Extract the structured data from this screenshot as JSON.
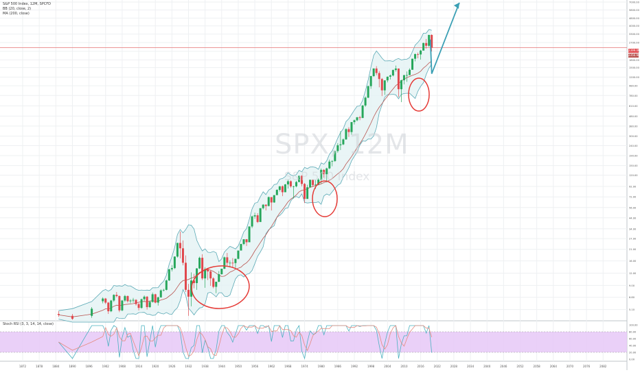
{
  "header": {
    "symbol_line": "S&P 500 Index, 12M, SPCFD",
    "bb_line": "BB (20, close, 2)",
    "ma_line": "MA (200, close)"
  },
  "watermark": {
    "ticker": "SPX, 12M",
    "name": "S&P 500 Index"
  },
  "price_tags": {
    "last": "2399.00",
    "ma": "2356.96"
  },
  "stoch_label": "Stoch RSI (3, 3, 14, 14, close)",
  "colors": {
    "up": "#26a65b",
    "down": "#e0474c",
    "band": "#5aa9b5",
    "band_fill": "#e4f3f4",
    "ma": "#b85450",
    "circle": "#e53935",
    "arrow": "#3a9fb4",
    "stoch_k": "#4ab1c0",
    "stoch_d": "#e58a7f",
    "stoch_bg": "#e6c8f7"
  },
  "chart_data": {
    "type": "candlestick",
    "y_scale": "log",
    "y_ticks": [
      "7000.00",
      "5800.00",
      "4800.00",
      "4000.00",
      "3300.00",
      "2700.00",
      "2200.00",
      "1800.00",
      "1500.00",
      "1200.00",
      "980.00",
      "780.00",
      "610.00",
      "480.00",
      "380.00",
      "300.00",
      "240.00",
      "190.00",
      "150.00",
      "120.00",
      "92.00",
      "72.00",
      "56.00",
      "44.00",
      "34.00",
      "27.00",
      "21.00",
      "16.00",
      "12.00",
      "9.00",
      "6.80",
      "5.10"
    ],
    "x_ticks": [
      "1872",
      "1878",
      "1884",
      "1890",
      "1896",
      "1902",
      "1908",
      "1914",
      "1920",
      "1926",
      "1932",
      "1938",
      "1944",
      "1950",
      "1956",
      "1962",
      "1968",
      "1974",
      "1980",
      "1986",
      "1992",
      "1998",
      "2004",
      "2010",
      "2016",
      "2022",
      "2028",
      "2034",
      "2040",
      "2046",
      "2052",
      "2058",
      "2064",
      "2070",
      "2076",
      "2082"
    ],
    "candles": [
      {
        "x": 1885,
        "o": 4.6,
        "h": 4.9,
        "l": 4.3,
        "c": 4.5
      },
      {
        "x": 1890,
        "o": 4.4,
        "h": 4.6,
        "l": 4.0,
        "c": 4.1
      },
      {
        "x": 1897,
        "o": 4.4,
        "h": 5.4,
        "l": 4.2,
        "c": 5.2
      },
      {
        "x": 1901,
        "o": 6.2,
        "h": 6.8,
        "l": 5.9,
        "c": 6.6
      },
      {
        "x": 1902,
        "o": 6.6,
        "h": 6.7,
        "l": 5.8,
        "c": 6.0
      },
      {
        "x": 1903,
        "o": 6.0,
        "h": 6.1,
        "l": 4.6,
        "c": 4.9
      },
      {
        "x": 1904,
        "o": 4.9,
        "h": 6.4,
        "l": 4.8,
        "c": 6.3
      },
      {
        "x": 1905,
        "o": 6.3,
        "h": 7.3,
        "l": 6.1,
        "c": 7.2
      },
      {
        "x": 1906,
        "o": 7.2,
        "h": 7.7,
        "l": 6.8,
        "c": 7.0
      },
      {
        "x": 1907,
        "o": 7.0,
        "h": 7.1,
        "l": 4.8,
        "c": 5.0
      },
      {
        "x": 1908,
        "o": 5.0,
        "h": 6.4,
        "l": 4.9,
        "c": 6.3
      },
      {
        "x": 1909,
        "o": 6.3,
        "h": 7.2,
        "l": 6.1,
        "c": 7.0
      },
      {
        "x": 1910,
        "o": 7.0,
        "h": 7.1,
        "l": 6.0,
        "c": 6.2
      },
      {
        "x": 1911,
        "o": 6.2,
        "h": 6.5,
        "l": 5.9,
        "c": 6.3
      },
      {
        "x": 1912,
        "o": 6.3,
        "h": 6.7,
        "l": 6.0,
        "c": 6.4
      },
      {
        "x": 1913,
        "o": 6.4,
        "h": 6.5,
        "l": 5.6,
        "c": 5.8
      },
      {
        "x": 1914,
        "o": 5.8,
        "h": 6.0,
        "l": 5.0,
        "c": 5.3
      },
      {
        "x": 1915,
        "o": 5.3,
        "h": 6.6,
        "l": 5.2,
        "c": 6.5
      },
      {
        "x": 1916,
        "o": 6.5,
        "h": 7.1,
        "l": 6.2,
        "c": 6.9
      },
      {
        "x": 1917,
        "o": 6.9,
        "h": 7.0,
        "l": 5.1,
        "c": 5.4
      },
      {
        "x": 1918,
        "o": 5.4,
        "h": 6.3,
        "l": 5.3,
        "c": 6.1
      },
      {
        "x": 1919,
        "o": 6.1,
        "h": 7.6,
        "l": 6.0,
        "c": 7.3
      },
      {
        "x": 1920,
        "o": 7.3,
        "h": 7.4,
        "l": 5.9,
        "c": 6.0
      },
      {
        "x": 1921,
        "o": 6.0,
        "h": 6.9,
        "l": 5.6,
        "c": 6.8
      },
      {
        "x": 1922,
        "o": 6.8,
        "h": 8.2,
        "l": 6.7,
        "c": 8.0
      },
      {
        "x": 1923,
        "o": 8.0,
        "h": 8.3,
        "l": 7.8,
        "c": 8.1
      },
      {
        "x": 1924,
        "o": 8.1,
        "h": 10.3,
        "l": 8.0,
        "c": 10.1
      },
      {
        "x": 1925,
        "o": 10.1,
        "h": 13.3,
        "l": 10.0,
        "c": 13.1
      },
      {
        "x": 1926,
        "o": 13.1,
        "h": 14.5,
        "l": 12.5,
        "c": 13.5
      },
      {
        "x": 1927,
        "o": 13.5,
        "h": 17.8,
        "l": 13.2,
        "c": 17.7
      },
      {
        "x": 1928,
        "o": 17.7,
        "h": 24.4,
        "l": 17.3,
        "c": 24.4
      },
      {
        "x": 1929,
        "o": 24.4,
        "h": 31.9,
        "l": 17.0,
        "c": 21.5
      },
      {
        "x": 1930,
        "o": 21.5,
        "h": 25.9,
        "l": 14.4,
        "c": 15.3
      },
      {
        "x": 1931,
        "o": 15.3,
        "h": 18.2,
        "l": 7.7,
        "c": 8.1
      },
      {
        "x": 1932,
        "o": 8.1,
        "h": 9.3,
        "l": 4.4,
        "c": 6.9
      },
      {
        "x": 1933,
        "o": 6.9,
        "h": 12.2,
        "l": 5.5,
        "c": 10.1
      },
      {
        "x": 1934,
        "o": 10.1,
        "h": 11.8,
        "l": 8.4,
        "c": 9.5
      },
      {
        "x": 1935,
        "o": 9.5,
        "h": 13.5,
        "l": 8.1,
        "c": 13.4
      },
      {
        "x": 1936,
        "o": 13.4,
        "h": 17.7,
        "l": 13.2,
        "c": 17.2
      },
      {
        "x": 1937,
        "o": 17.2,
        "h": 18.7,
        "l": 10.2,
        "c": 10.6
      },
      {
        "x": 1938,
        "o": 10.6,
        "h": 13.8,
        "l": 8.5,
        "c": 13.2
      },
      {
        "x": 1939,
        "o": 13.2,
        "h": 13.2,
        "l": 10.2,
        "c": 12.5
      },
      {
        "x": 1940,
        "o": 12.5,
        "h": 12.8,
        "l": 8.9,
        "c": 10.6
      },
      {
        "x": 1941,
        "o": 10.6,
        "h": 10.9,
        "l": 8.4,
        "c": 8.7
      },
      {
        "x": 1942,
        "o": 8.7,
        "h": 9.8,
        "l": 7.5,
        "c": 9.8
      },
      {
        "x": 1943,
        "o": 9.8,
        "h": 12.6,
        "l": 9.7,
        "c": 11.7
      },
      {
        "x": 1944,
        "o": 11.7,
        "h": 13.3,
        "l": 11.6,
        "c": 13.3
      },
      {
        "x": 1945,
        "o": 13.3,
        "h": 17.7,
        "l": 13.2,
        "c": 17.4
      },
      {
        "x": 1946,
        "o": 17.4,
        "h": 19.3,
        "l": 14.1,
        "c": 15.3
      },
      {
        "x": 1947,
        "o": 15.3,
        "h": 16.2,
        "l": 13.7,
        "c": 15.3
      },
      {
        "x": 1948,
        "o": 15.3,
        "h": 17.1,
        "l": 13.8,
        "c": 15.2
      },
      {
        "x": 1949,
        "o": 15.2,
        "h": 16.8,
        "l": 13.6,
        "c": 16.8
      },
      {
        "x": 1950,
        "o": 16.8,
        "h": 20.4,
        "l": 16.6,
        "c": 20.4
      },
      {
        "x": 1951,
        "o": 20.4,
        "h": 23.9,
        "l": 20.7,
        "c": 23.8
      },
      {
        "x": 1952,
        "o": 23.8,
        "h": 26.6,
        "l": 23.1,
        "c": 26.6
      },
      {
        "x": 1953,
        "o": 26.6,
        "h": 26.7,
        "l": 22.7,
        "c": 24.8
      },
      {
        "x": 1954,
        "o": 24.8,
        "h": 35.9,
        "l": 24.8,
        "c": 35.9
      },
      {
        "x": 1955,
        "o": 35.9,
        "h": 46.4,
        "l": 34.6,
        "c": 45.5
      },
      {
        "x": 1956,
        "o": 45.5,
        "h": 49.7,
        "l": 43.1,
        "c": 46.7
      },
      {
        "x": 1957,
        "o": 46.7,
        "h": 49.1,
        "l": 38.9,
        "c": 39.9
      },
      {
        "x": 1958,
        "o": 39.9,
        "h": 55.2,
        "l": 40.3,
        "c": 55.2
      },
      {
        "x": 1959,
        "o": 55.2,
        "h": 60.7,
        "l": 53.6,
        "c": 59.9
      },
      {
        "x": 1960,
        "o": 59.9,
        "h": 60.4,
        "l": 52.3,
        "c": 58.1
      },
      {
        "x": 1961,
        "o": 58.1,
        "h": 72.6,
        "l": 57.6,
        "c": 71.6
      },
      {
        "x": 1962,
        "o": 71.6,
        "h": 71.1,
        "l": 52.3,
        "c": 63.1
      },
      {
        "x": 1963,
        "o": 63.1,
        "h": 75.0,
        "l": 62.7,
        "c": 75.0
      },
      {
        "x": 1964,
        "o": 75.0,
        "h": 86.3,
        "l": 75.4,
        "c": 84.8
      },
      {
        "x": 1965,
        "o": 84.8,
        "h": 92.6,
        "l": 81.6,
        "c": 92.4
      },
      {
        "x": 1966,
        "o": 92.4,
        "h": 94.1,
        "l": 73.2,
        "c": 80.3
      },
      {
        "x": 1967,
        "o": 80.3,
        "h": 97.6,
        "l": 80.4,
        "c": 96.5
      },
      {
        "x": 1968,
        "o": 96.5,
        "h": 108.4,
        "l": 87.7,
        "c": 103.9
      },
      {
        "x": 1969,
        "o": 103.9,
        "h": 106.2,
        "l": 89.2,
        "c": 92.1
      },
      {
        "x": 1970,
        "o": 92.1,
        "h": 93.5,
        "l": 69.3,
        "c": 92.2
      },
      {
        "x": 1971,
        "o": 92.2,
        "h": 104.8,
        "l": 90.2,
        "c": 102.1
      },
      {
        "x": 1972,
        "o": 102.1,
        "h": 119.1,
        "l": 101.7,
        "c": 118.1
      },
      {
        "x": 1973,
        "o": 118.1,
        "h": 120.2,
        "l": 92.2,
        "c": 97.6
      },
      {
        "x": 1974,
        "o": 97.6,
        "h": 99.8,
        "l": 62.3,
        "c": 68.6
      },
      {
        "x": 1975,
        "o": 68.6,
        "h": 95.6,
        "l": 70.0,
        "c": 90.2
      },
      {
        "x": 1976,
        "o": 90.2,
        "h": 107.8,
        "l": 90.9,
        "c": 107.5
      },
      {
        "x": 1977,
        "o": 107.5,
        "h": 107.0,
        "l": 90.7,
        "c": 95.1
      },
      {
        "x": 1978,
        "o": 95.1,
        "h": 106.9,
        "l": 86.9,
        "c": 96.1
      },
      {
        "x": 1979,
        "o": 96.1,
        "h": 111.3,
        "l": 96.1,
        "c": 107.9
      },
      {
        "x": 1980,
        "o": 107.9,
        "h": 140.5,
        "l": 98.2,
        "c": 135.8
      },
      {
        "x": 1981,
        "o": 135.8,
        "h": 138.1,
        "l": 112.8,
        "c": 122.6
      },
      {
        "x": 1982,
        "o": 122.6,
        "h": 143.0,
        "l": 101.4,
        "c": 140.6
      },
      {
        "x": 1983,
        "o": 140.6,
        "h": 172.7,
        "l": 138.3,
        "c": 164.9
      },
      {
        "x": 1984,
        "o": 164.9,
        "h": 170.4,
        "l": 147.8,
        "c": 167.2
      },
      {
        "x": 1985,
        "o": 167.2,
        "h": 212.0,
        "l": 163.7,
        "c": 211.3
      },
      {
        "x": 1986,
        "o": 211.3,
        "h": 254.0,
        "l": 203.5,
        "c": 242.2
      },
      {
        "x": 1987,
        "o": 242.2,
        "h": 336.8,
        "l": 216.5,
        "c": 247.1
      },
      {
        "x": 1988,
        "o": 247.1,
        "h": 283.7,
        "l": 242.6,
        "c": 277.7
      },
      {
        "x": 1989,
        "o": 277.7,
        "h": 359.8,
        "l": 275.3,
        "c": 353.4
      },
      {
        "x": 1990,
        "o": 353.4,
        "h": 369.8,
        "l": 294.5,
        "c": 330.2
      },
      {
        "x": 1991,
        "o": 330.2,
        "h": 418.3,
        "l": 309.4,
        "c": 417.1
      },
      {
        "x": 1992,
        "o": 417.1,
        "h": 442.7,
        "l": 394.5,
        "c": 435.7
      },
      {
        "x": 1993,
        "o": 435.7,
        "h": 471.3,
        "l": 425.0,
        "c": 466.5
      },
      {
        "x": 1994,
        "o": 466.5,
        "h": 482.9,
        "l": 435.9,
        "c": 459.3
      },
      {
        "x": 1995,
        "o": 459.3,
        "h": 622.9,
        "l": 459.1,
        "c": 615.9
      },
      {
        "x": 1996,
        "o": 615.9,
        "h": 761.8,
        "l": 597.3,
        "c": 740.7
      },
      {
        "x": 1997,
        "o": 740.7,
        "h": 983.8,
        "l": 733.5,
        "c": 970.4
      },
      {
        "x": 1998,
        "o": 970.4,
        "h": 1241.8,
        "l": 912.8,
        "c": 1229.2
      },
      {
        "x": 1999,
        "o": 1229.2,
        "h": 1476.0,
        "l": 1205.5,
        "c": 1469.3
      },
      {
        "x": 2000,
        "o": 1469.3,
        "h": 1552.9,
        "l": 1254.1,
        "c": 1320.3
      },
      {
        "x": 2001,
        "o": 1320.3,
        "h": 1383.4,
        "l": 944.8,
        "c": 1148.1
      },
      {
        "x": 2002,
        "o": 1148.1,
        "h": 1176.9,
        "l": 768.6,
        "c": 879.8
      },
      {
        "x": 2003,
        "o": 879.8,
        "h": 1112.6,
        "l": 788.9,
        "c": 1111.9
      },
      {
        "x": 2004,
        "o": 1111.9,
        "h": 1217.9,
        "l": 1060.7,
        "c": 1211.9
      },
      {
        "x": 2005,
        "o": 1211.9,
        "h": 1275.8,
        "l": 1136.2,
        "c": 1248.3
      },
      {
        "x": 2006,
        "o": 1248.3,
        "h": 1431.8,
        "l": 1219.3,
        "c": 1418.3
      },
      {
        "x": 2007,
        "o": 1418.3,
        "h": 1576.1,
        "l": 1363.9,
        "c": 1468.4
      },
      {
        "x": 2008,
        "o": 1468.4,
        "h": 1471.8,
        "l": 752.4,
        "c": 903.3
      },
      {
        "x": 2009,
        "o": 903.3,
        "h": 1130.4,
        "l": 666.8,
        "c": 1115.1
      },
      {
        "x": 2010,
        "o": 1115.1,
        "h": 1262.6,
        "l": 1010.9,
        "c": 1257.6
      },
      {
        "x": 2011,
        "o": 1257.6,
        "h": 1370.6,
        "l": 1074.8,
        "c": 1257.6
      },
      {
        "x": 2012,
        "o": 1257.6,
        "h": 1474.5,
        "l": 1258.9,
        "c": 1426.2
      },
      {
        "x": 2013,
        "o": 1426.2,
        "h": 1849.4,
        "l": 1426.2,
        "c": 1848.4
      },
      {
        "x": 2014,
        "o": 1848.4,
        "h": 2093.6,
        "l": 1737.9,
        "c": 2058.9
      },
      {
        "x": 2015,
        "o": 2058.9,
        "h": 2134.7,
        "l": 1867.0,
        "c": 2043.9
      },
      {
        "x": 2016,
        "o": 2043.9,
        "h": 2277.5,
        "l": 1810.1,
        "c": 2238.8
      },
      {
        "x": 2017,
        "o": 2238.8,
        "h": 2694.9,
        "l": 2245.1,
        "c": 2673.6
      },
      {
        "x": 2018,
        "o": 2673.6,
        "h": 2940.9,
        "l": 2346.6,
        "c": 2506.9
      },
      {
        "x": 2019,
        "o": 2506.9,
        "h": 3247.9,
        "l": 2443.9,
        "c": 3230.8
      },
      {
        "x": 2020,
        "o": 3230.8,
        "h": 3277.0,
        "l": 2191.9,
        "c": 2399.0
      }
    ],
    "overlays": [
      "BB (20, close, 2)",
      "MA (200, close)"
    ],
    "stoch_y_ticks": [
      "100.00",
      "80.00",
      "60.00",
      "40.00",
      "20.00",
      "0.00"
    ],
    "projection": {
      "from": [
        2020,
        1300
      ],
      "to": [
        2030,
        6900
      ]
    }
  }
}
